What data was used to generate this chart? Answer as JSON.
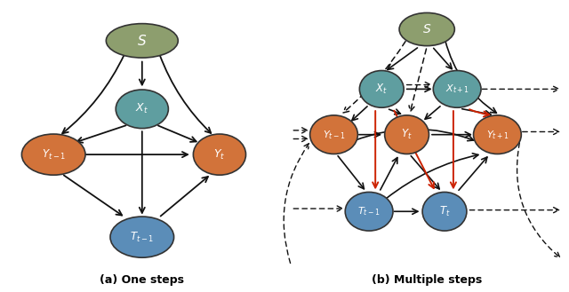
{
  "fig_width": 6.4,
  "fig_height": 3.29,
  "dpi": 100,
  "node_colors": {
    "S": "#8d9e6e",
    "X": "#5f9ea0",
    "Y": "#d2733a",
    "T": "#5b8db8"
  },
  "caption_a": "(a) One steps",
  "caption_b": "(b) Multiple steps",
  "black_arrow": "#111111",
  "red_arrow": "#cc2200",
  "dashed_arrow": "#111111"
}
